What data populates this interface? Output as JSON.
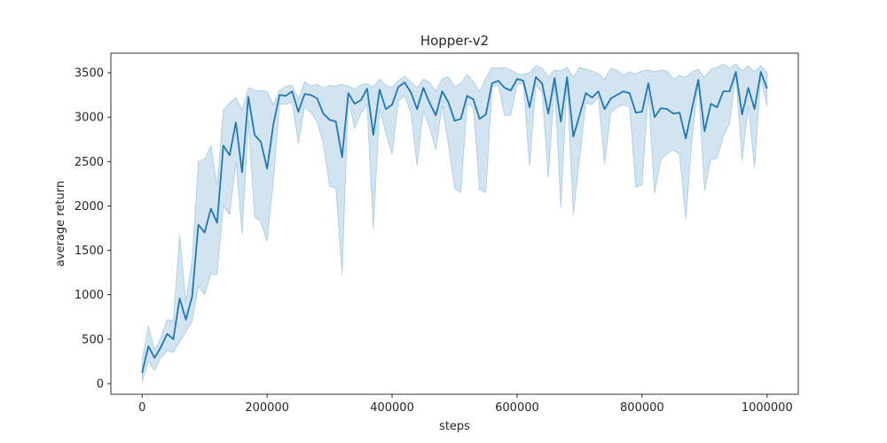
{
  "chart_data": {
    "type": "line",
    "title": "Hopper-v2",
    "xlabel": "steps",
    "ylabel": "average return",
    "xlim": [
      -50000,
      1050000
    ],
    "ylim": [
      -120,
      3720
    ],
    "xticks": [
      0,
      200000,
      400000,
      600000,
      800000,
      1000000
    ],
    "xtick_labels": [
      "0",
      "200000",
      "400000",
      "600000",
      "800000",
      "1000000"
    ],
    "yticks": [
      0,
      500,
      1000,
      1500,
      2000,
      2500,
      3000,
      3500
    ],
    "ytick_labels": [
      "0",
      "500",
      "1000",
      "1500",
      "2000",
      "2500",
      "3000",
      "3500"
    ],
    "grid": false,
    "colors": {
      "line": "#1f77b4",
      "band": "#1f77b4"
    },
    "series": [
      {
        "x": [
          0,
          10000,
          20000,
          30000,
          40000,
          50000,
          60000,
          70000,
          80000,
          90000,
          100000,
          110000,
          120000,
          130000,
          140000,
          150000,
          160000,
          170000,
          180000,
          190000,
          200000,
          210000,
          220000,
          230000,
          240000,
          250000,
          260000,
          270000,
          280000,
          290000,
          300000,
          310000,
          320000,
          330000,
          340000,
          350000,
          360000,
          370000,
          380000,
          390000,
          400000,
          410000,
          420000,
          430000,
          440000,
          450000,
          460000,
          470000,
          480000,
          490000,
          500000,
          510000,
          520000,
          530000,
          540000,
          550000,
          560000,
          570000,
          580000,
          590000,
          600000,
          610000,
          620000,
          630000,
          640000,
          650000,
          660000,
          670000,
          680000,
          690000,
          700000,
          710000,
          720000,
          730000,
          740000,
          750000,
          760000,
          770000,
          780000,
          790000,
          800000,
          810000,
          820000,
          830000,
          840000,
          850000,
          860000,
          870000,
          880000,
          890000,
          900000,
          910000,
          920000,
          930000,
          940000,
          950000,
          960000,
          970000,
          980000,
          990000,
          1000000
        ],
        "mean": [
          120,
          420,
          290,
          410,
          560,
          500,
          960,
          720,
          980,
          1790,
          1700,
          1970,
          1810,
          2680,
          2570,
          2940,
          2380,
          3230,
          2800,
          2720,
          2420,
          2920,
          3250,
          3240,
          3290,
          3060,
          3260,
          3250,
          3210,
          3040,
          2970,
          2950,
          2550,
          3270,
          3150,
          3190,
          3320,
          2800,
          3310,
          3090,
          3140,
          3340,
          3390,
          3280,
          3090,
          3330,
          3160,
          3020,
          3290,
          3170,
          2960,
          2980,
          3240,
          3200,
          2980,
          3030,
          3380,
          3410,
          3330,
          3300,
          3430,
          3410,
          3110,
          3450,
          3380,
          3040,
          3440,
          2950,
          3450,
          2780,
          3020,
          3270,
          3220,
          3290,
          3090,
          3210,
          3250,
          3290,
          3270,
          3050,
          3060,
          3380,
          3000,
          3100,
          3090,
          3040,
          3050,
          2760,
          3100,
          3420,
          2840,
          3150,
          3110,
          3290,
          3290,
          3510,
          3030,
          3330,
          3090,
          3510,
          3320
        ],
        "lower": [
          20,
          250,
          150,
          290,
          370,
          350,
          470,
          580,
          700,
          1100,
          1000,
          1230,
          1230,
          2000,
          1900,
          2500,
          1680,
          2950,
          1880,
          1820,
          1600,
          2280,
          3150,
          3140,
          3170,
          2700,
          3110,
          3050,
          2950,
          2700,
          2220,
          2200,
          1230,
          3200,
          2870,
          3040,
          3140,
          1740,
          3090,
          2820,
          2580,
          3180,
          3240,
          3050,
          2450,
          3070,
          2880,
          2630,
          3130,
          2700,
          2200,
          2150,
          3150,
          3110,
          2180,
          2150,
          3340,
          3360,
          3020,
          3020,
          3370,
          3380,
          2450,
          3360,
          3280,
          2320,
          3370,
          1980,
          3380,
          1900,
          2530,
          3160,
          3140,
          3230,
          2470,
          3050,
          3110,
          3140,
          3110,
          2210,
          2240,
          3270,
          2140,
          2520,
          2590,
          2630,
          2580,
          1840,
          2760,
          3360,
          2170,
          2520,
          2540,
          2780,
          2930,
          3470,
          2510,
          3120,
          2430,
          3440,
          3120
        ],
        "upper": [
          260,
          650,
          380,
          520,
          720,
          710,
          1680,
          920,
          1400,
          2500,
          2530,
          2680,
          2230,
          3080,
          3160,
          3220,
          3080,
          3330,
          3300,
          3300,
          3290,
          3140,
          3300,
          3350,
          3360,
          3200,
          3400,
          3350,
          3370,
          3330,
          3360,
          3350,
          3370,
          3350,
          3320,
          3360,
          3380,
          3340,
          3430,
          3360,
          3330,
          3410,
          3460,
          3400,
          3330,
          3430,
          3390,
          3290,
          3430,
          3460,
          3340,
          3380,
          3480,
          3400,
          3290,
          3440,
          3560,
          3550,
          3560,
          3530,
          3490,
          3480,
          3500,
          3580,
          3550,
          3450,
          3530,
          3520,
          3560,
          3450,
          3560,
          3540,
          3520,
          3490,
          3430,
          3550,
          3530,
          3470,
          3510,
          3490,
          3520,
          3530,
          3510,
          3530,
          3520,
          3430,
          3470,
          3450,
          3510,
          3540,
          3450,
          3540,
          3560,
          3600,
          3550,
          3600,
          3520,
          3580,
          3510,
          3580,
          3500
        ]
      }
    ]
  }
}
